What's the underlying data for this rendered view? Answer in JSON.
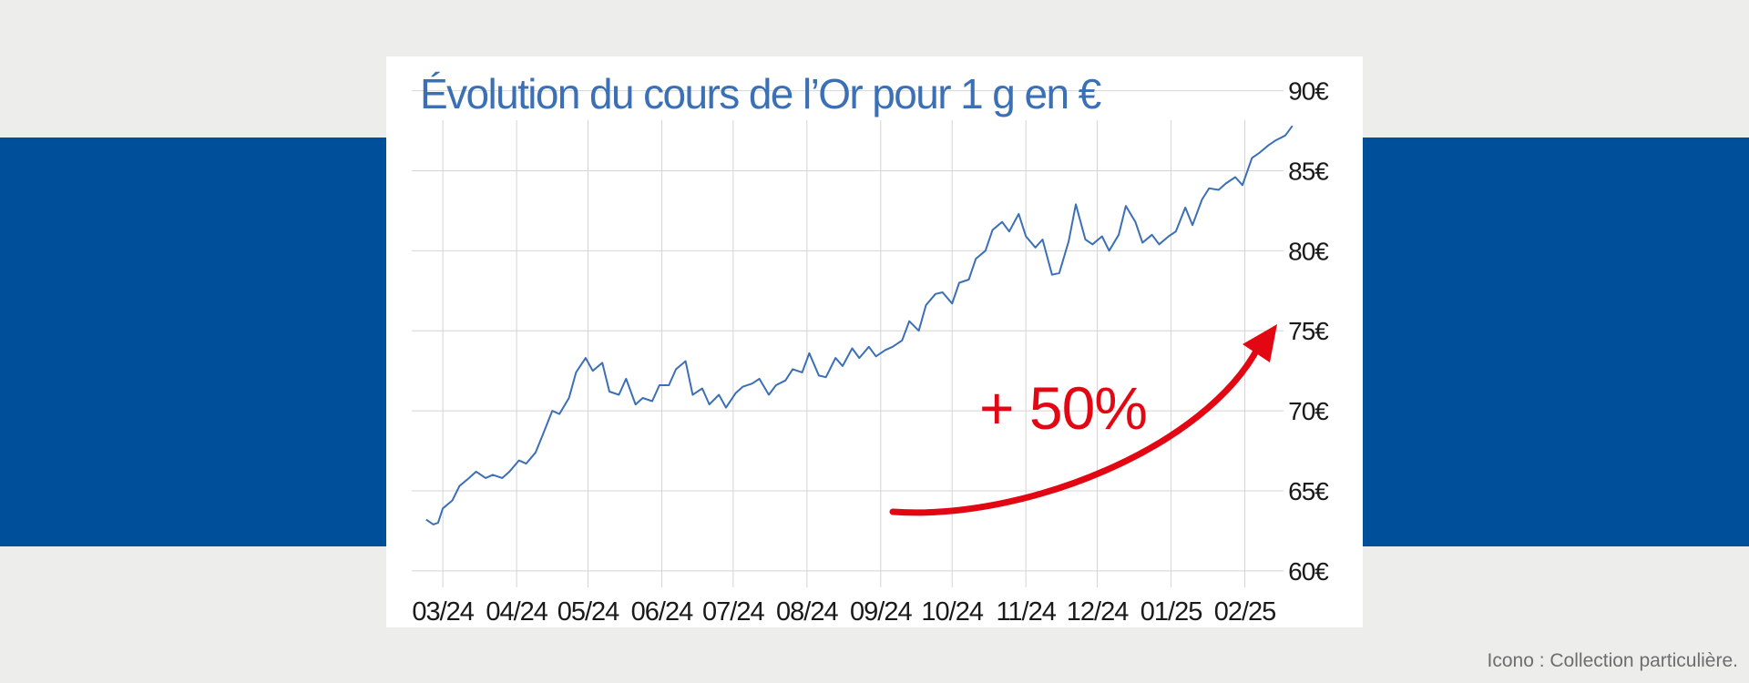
{
  "colors": {
    "background": "#ededeb",
    "band": "#004f9b",
    "panel": "#ffffff",
    "line": "#3b6fb6",
    "grid": "#d4d4d4",
    "annotation": "#e30613"
  },
  "credit": "Icono : Collection particulière.",
  "annotation": {
    "text": "+ 50%",
    "icon": "curved-arrow-up-right-icon"
  },
  "chart_data": {
    "type": "line",
    "title": "Évolution du cours de l’Or pour 1 g en €",
    "xlabel": "",
    "ylabel": "",
    "grid": true,
    "y_axis_position": "right",
    "ylim": [
      58,
      91
    ],
    "y_ticks": [
      60,
      65,
      70,
      75,
      80,
      85,
      90
    ],
    "y_tick_labels": [
      "60€",
      "65€",
      "70€",
      "75€",
      "80€",
      "85€",
      "90€"
    ],
    "x_tick_labels": [
      "03/24",
      "04/24",
      "05/24",
      "06/24",
      "07/24",
      "08/24",
      "09/24",
      "10/24",
      "11/24",
      "12/24",
      "01/25",
      "02/25"
    ],
    "xlim": [
      "2024-02-20",
      "2025-02-23"
    ],
    "x_tick_dates": [
      "2024-03-01",
      "2024-04-01",
      "2024-05-01",
      "2024-06-01",
      "2024-07-01",
      "2024-08-01",
      "2024-09-01",
      "2024-10-01",
      "2024-11-01",
      "2024-12-01",
      "2025-01-01",
      "2025-02-01"
    ],
    "series": [
      {
        "x": [
          "2024-02-23",
          "2024-02-26",
          "2024-02-28",
          "2024-03-01",
          "2024-03-05",
          "2024-03-08",
          "2024-03-12",
          "2024-03-15",
          "2024-03-19",
          "2024-03-22",
          "2024-03-26",
          "2024-03-29",
          "2024-04-02",
          "2024-04-05",
          "2024-04-09",
          "2024-04-12",
          "2024-04-16",
          "2024-04-19",
          "2024-04-23",
          "2024-04-26",
          "2024-04-30",
          "2024-05-03",
          "2024-05-07",
          "2024-05-10",
          "2024-05-14",
          "2024-05-17",
          "2024-05-21",
          "2024-05-24",
          "2024-05-28",
          "2024-05-31",
          "2024-06-04",
          "2024-06-07",
          "2024-06-11",
          "2024-06-14",
          "2024-06-18",
          "2024-06-21",
          "2024-06-25",
          "2024-06-28",
          "2024-07-02",
          "2024-07-05",
          "2024-07-09",
          "2024-07-12",
          "2024-07-16",
          "2024-07-19",
          "2024-07-23",
          "2024-07-26",
          "2024-07-30",
          "2024-08-02",
          "2024-08-06",
          "2024-08-09",
          "2024-08-13",
          "2024-08-16",
          "2024-08-20",
          "2024-08-23",
          "2024-08-27",
          "2024-08-30",
          "2024-09-03",
          "2024-09-06",
          "2024-09-10",
          "2024-09-13",
          "2024-09-17",
          "2024-09-20",
          "2024-09-24",
          "2024-09-27",
          "2024-10-01",
          "2024-10-04",
          "2024-10-08",
          "2024-10-11",
          "2024-10-15",
          "2024-10-18",
          "2024-10-22",
          "2024-10-25",
          "2024-10-29",
          "2024-11-01",
          "2024-11-05",
          "2024-11-08",
          "2024-11-12",
          "2024-11-15",
          "2024-11-19",
          "2024-11-22",
          "2024-11-26",
          "2024-11-29",
          "2024-12-03",
          "2024-12-06",
          "2024-12-10",
          "2024-12-13",
          "2024-12-17",
          "2024-12-20",
          "2024-12-24",
          "2024-12-27",
          "2024-12-31",
          "2025-01-03",
          "2025-01-07",
          "2025-01-10",
          "2025-01-14",
          "2025-01-17",
          "2025-01-21",
          "2025-01-24",
          "2025-01-28",
          "2025-01-31",
          "2025-02-04",
          "2025-02-07",
          "2025-02-11",
          "2025-02-14",
          "2025-02-18",
          "2025-02-21"
        ],
        "values": [
          63.2,
          62.9,
          63.0,
          63.9,
          64.4,
          65.3,
          65.8,
          66.2,
          65.8,
          66.0,
          65.8,
          66.2,
          66.9,
          66.7,
          67.4,
          68.5,
          70.0,
          69.8,
          70.8,
          72.4,
          73.3,
          72.5,
          73.0,
          71.2,
          71.0,
          72.0,
          70.4,
          70.8,
          70.6,
          71.6,
          71.6,
          72.6,
          73.1,
          71.0,
          71.4,
          70.4,
          71.0,
          70.2,
          71.1,
          71.5,
          71.7,
          72.0,
          71.0,
          71.6,
          71.9,
          72.6,
          72.4,
          73.6,
          72.2,
          72.1,
          73.3,
          72.8,
          73.9,
          73.3,
          74.0,
          73.4,
          73.8,
          74.0,
          74.4,
          75.6,
          75.0,
          76.6,
          77.3,
          77.4,
          76.7,
          78.0,
          78.2,
          79.5,
          80.0,
          81.3,
          81.8,
          81.2,
          82.3,
          80.9,
          80.2,
          80.7,
          78.5,
          78.6,
          80.6,
          82.9,
          80.7,
          80.4,
          80.9,
          80.0,
          81.0,
          82.8,
          81.8,
          80.5,
          81.0,
          80.4,
          80.9,
          81.2,
          82.7,
          81.6,
          83.2,
          83.9,
          83.8,
          84.2,
          84.6,
          84.1,
          85.8,
          86.1,
          86.6,
          86.9,
          87.2,
          87.8
        ]
      }
    ]
  }
}
